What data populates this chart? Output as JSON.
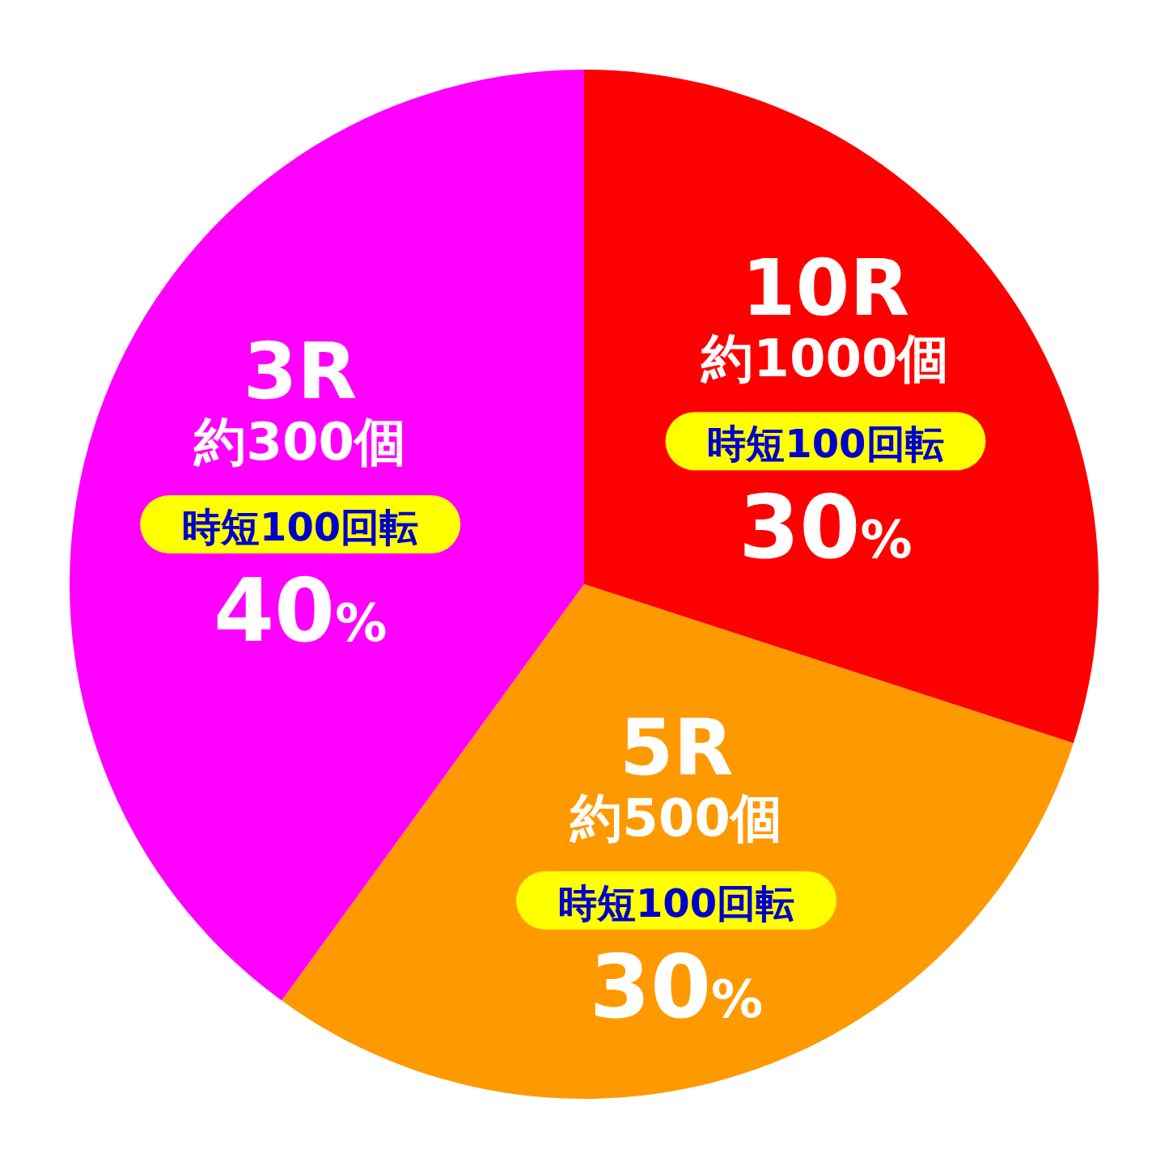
{
  "chart_data": {
    "type": "pie",
    "categories": [
      "10R",
      "5R",
      "3R"
    ],
    "values": [
      30,
      30,
      40
    ],
    "colors": [
      "#ff0000",
      "#ff9900",
      "#ff00ff"
    ],
    "value_labels": [
      "30%",
      "30%",
      "40%"
    ],
    "annotations": [
      {
        "text": "約1000個",
        "x": "10R"
      },
      {
        "text": "時短100回転",
        "x": "10R"
      },
      {
        "text": "約500個",
        "x": "5R"
      },
      {
        "text": "時短100回転",
        "x": "5R"
      },
      {
        "text": "約300個",
        "x": "3R"
      },
      {
        "text": "時短100回転",
        "x": "3R"
      }
    ],
    "legend": false
  }
}
